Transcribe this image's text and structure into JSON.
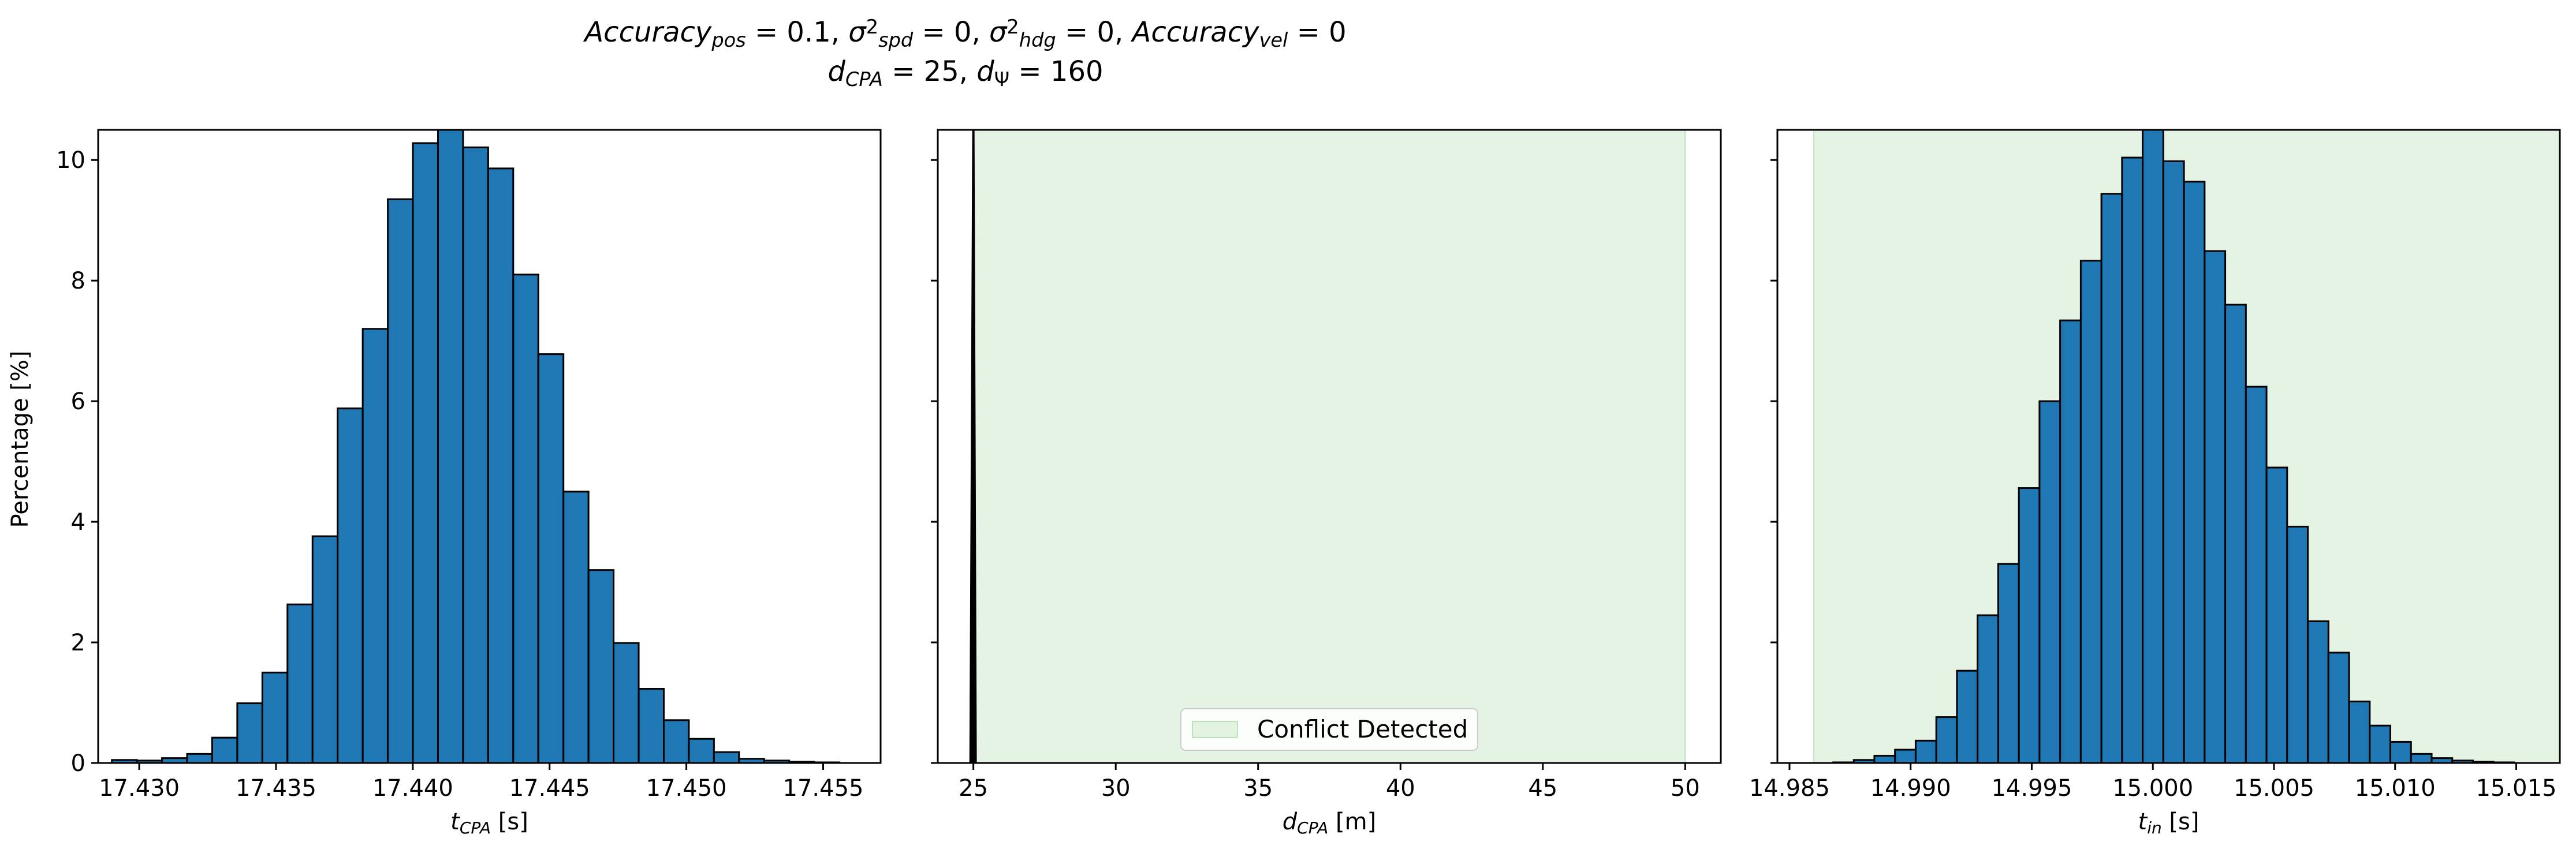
{
  "figure": {
    "title_line1": {
      "parts": [
        {
          "t": "Accuracy",
          "it": true
        },
        {
          "t": "pos",
          "it": true,
          "sub": true
        },
        {
          "t": " = 0.1, "
        },
        {
          "t": "σ",
          "it": true
        },
        {
          "t": "2",
          "sup": true
        },
        {
          "t": "spd",
          "it": true,
          "sub": true
        },
        {
          "t": " = 0, "
        },
        {
          "t": "σ",
          "it": true
        },
        {
          "t": "2",
          "sup": true
        },
        {
          "t": "hdg",
          "it": true,
          "sub": true
        },
        {
          "t": " = 0, "
        },
        {
          "t": "Accuracy",
          "it": true
        },
        {
          "t": "vel",
          "it": true,
          "sub": true
        },
        {
          "t": " = 0"
        }
      ]
    },
    "title_line2": {
      "parts": [
        {
          "t": "d",
          "it": true
        },
        {
          "t": "CPA",
          "it": true,
          "sub": true
        },
        {
          "t": " = 25, "
        },
        {
          "t": "d",
          "it": true
        },
        {
          "t": "Ψ",
          "sub": true
        },
        {
          "t": " = 160"
        }
      ]
    },
    "shared_ylabel": "Percentage [%]",
    "colors": {
      "bar": "#1f77b4",
      "edge": "#000000",
      "band": "#2ca02c",
      "band_alpha": 0.12
    }
  },
  "chart_data": [
    {
      "type": "bar",
      "subtype": "histogram",
      "x_label_parts": [
        {
          "t": "t",
          "it": true
        },
        {
          "t": "CPA",
          "it": true,
          "sub": true
        },
        {
          "t": " [s]"
        }
      ],
      "xlim": [
        17.4285,
        17.4571
      ],
      "ylim": [
        0,
        10.5
      ],
      "x_ticks": [
        "17.430",
        "17.435",
        "17.440",
        "17.445",
        "17.450",
        "17.455"
      ],
      "y_ticks": [
        "0",
        "2",
        "4",
        "6",
        "8",
        "10"
      ],
      "bin_start": 17.429,
      "bin_width": 0.000917,
      "values": [
        0.05,
        0.04,
        0.08,
        0.15,
        0.42,
        0.99,
        1.5,
        2.63,
        3.76,
        5.88,
        7.2,
        9.35,
        10.28,
        10.52,
        10.21,
        9.86,
        8.1,
        6.78,
        4.5,
        3.2,
        1.99,
        1.23,
        0.71,
        0.4,
        0.18,
        0.07,
        0.04,
        0.02,
        0.01
      ]
    },
    {
      "type": "area",
      "x_label_parts": [
        {
          "t": "d",
          "it": true
        },
        {
          "t": "CPA",
          "it": true,
          "sub": true
        },
        {
          "t": " [m]"
        }
      ],
      "xlim": [
        23.75,
        51.25
      ],
      "ylim": [
        0,
        10.5
      ],
      "x_ticks": [
        "25",
        "30",
        "35",
        "40",
        "45",
        "50"
      ],
      "band": {
        "x0": 25,
        "x1": 50,
        "label": "Conflict Detected"
      },
      "spike": {
        "x_from": 24.9,
        "x_to": 25.08,
        "peak_x": 25.0,
        "peak_y": 10.5
      },
      "legend_position": "lower center"
    },
    {
      "type": "bar",
      "subtype": "histogram",
      "x_label_parts": [
        {
          "t": "t",
          "it": true
        },
        {
          "t": "in",
          "it": true,
          "sub": true
        },
        {
          "t": " [s]"
        }
      ],
      "xlim": [
        14.9845,
        15.0168
      ],
      "ylim": [
        0,
        10.5
      ],
      "x_ticks": [
        "14.985",
        "14.990",
        "14.995",
        "15.000",
        "15.005",
        "15.010",
        "15.015"
      ],
      "band": {
        "x0": 14.986,
        "x1": 15.0168
      },
      "bin_start": 14.9868,
      "bin_width": 0.000852,
      "values": [
        0.01,
        0.05,
        0.12,
        0.22,
        0.37,
        0.76,
        1.53,
        2.45,
        3.3,
        4.56,
        6.0,
        7.34,
        8.33,
        9.44,
        10.04,
        10.54,
        9.98,
        9.64,
        8.49,
        7.6,
        6.24,
        4.9,
        3.92,
        2.35,
        1.83,
        1.02,
        0.62,
        0.35,
        0.15,
        0.08,
        0.04,
        0.02,
        0.01
      ]
    }
  ]
}
